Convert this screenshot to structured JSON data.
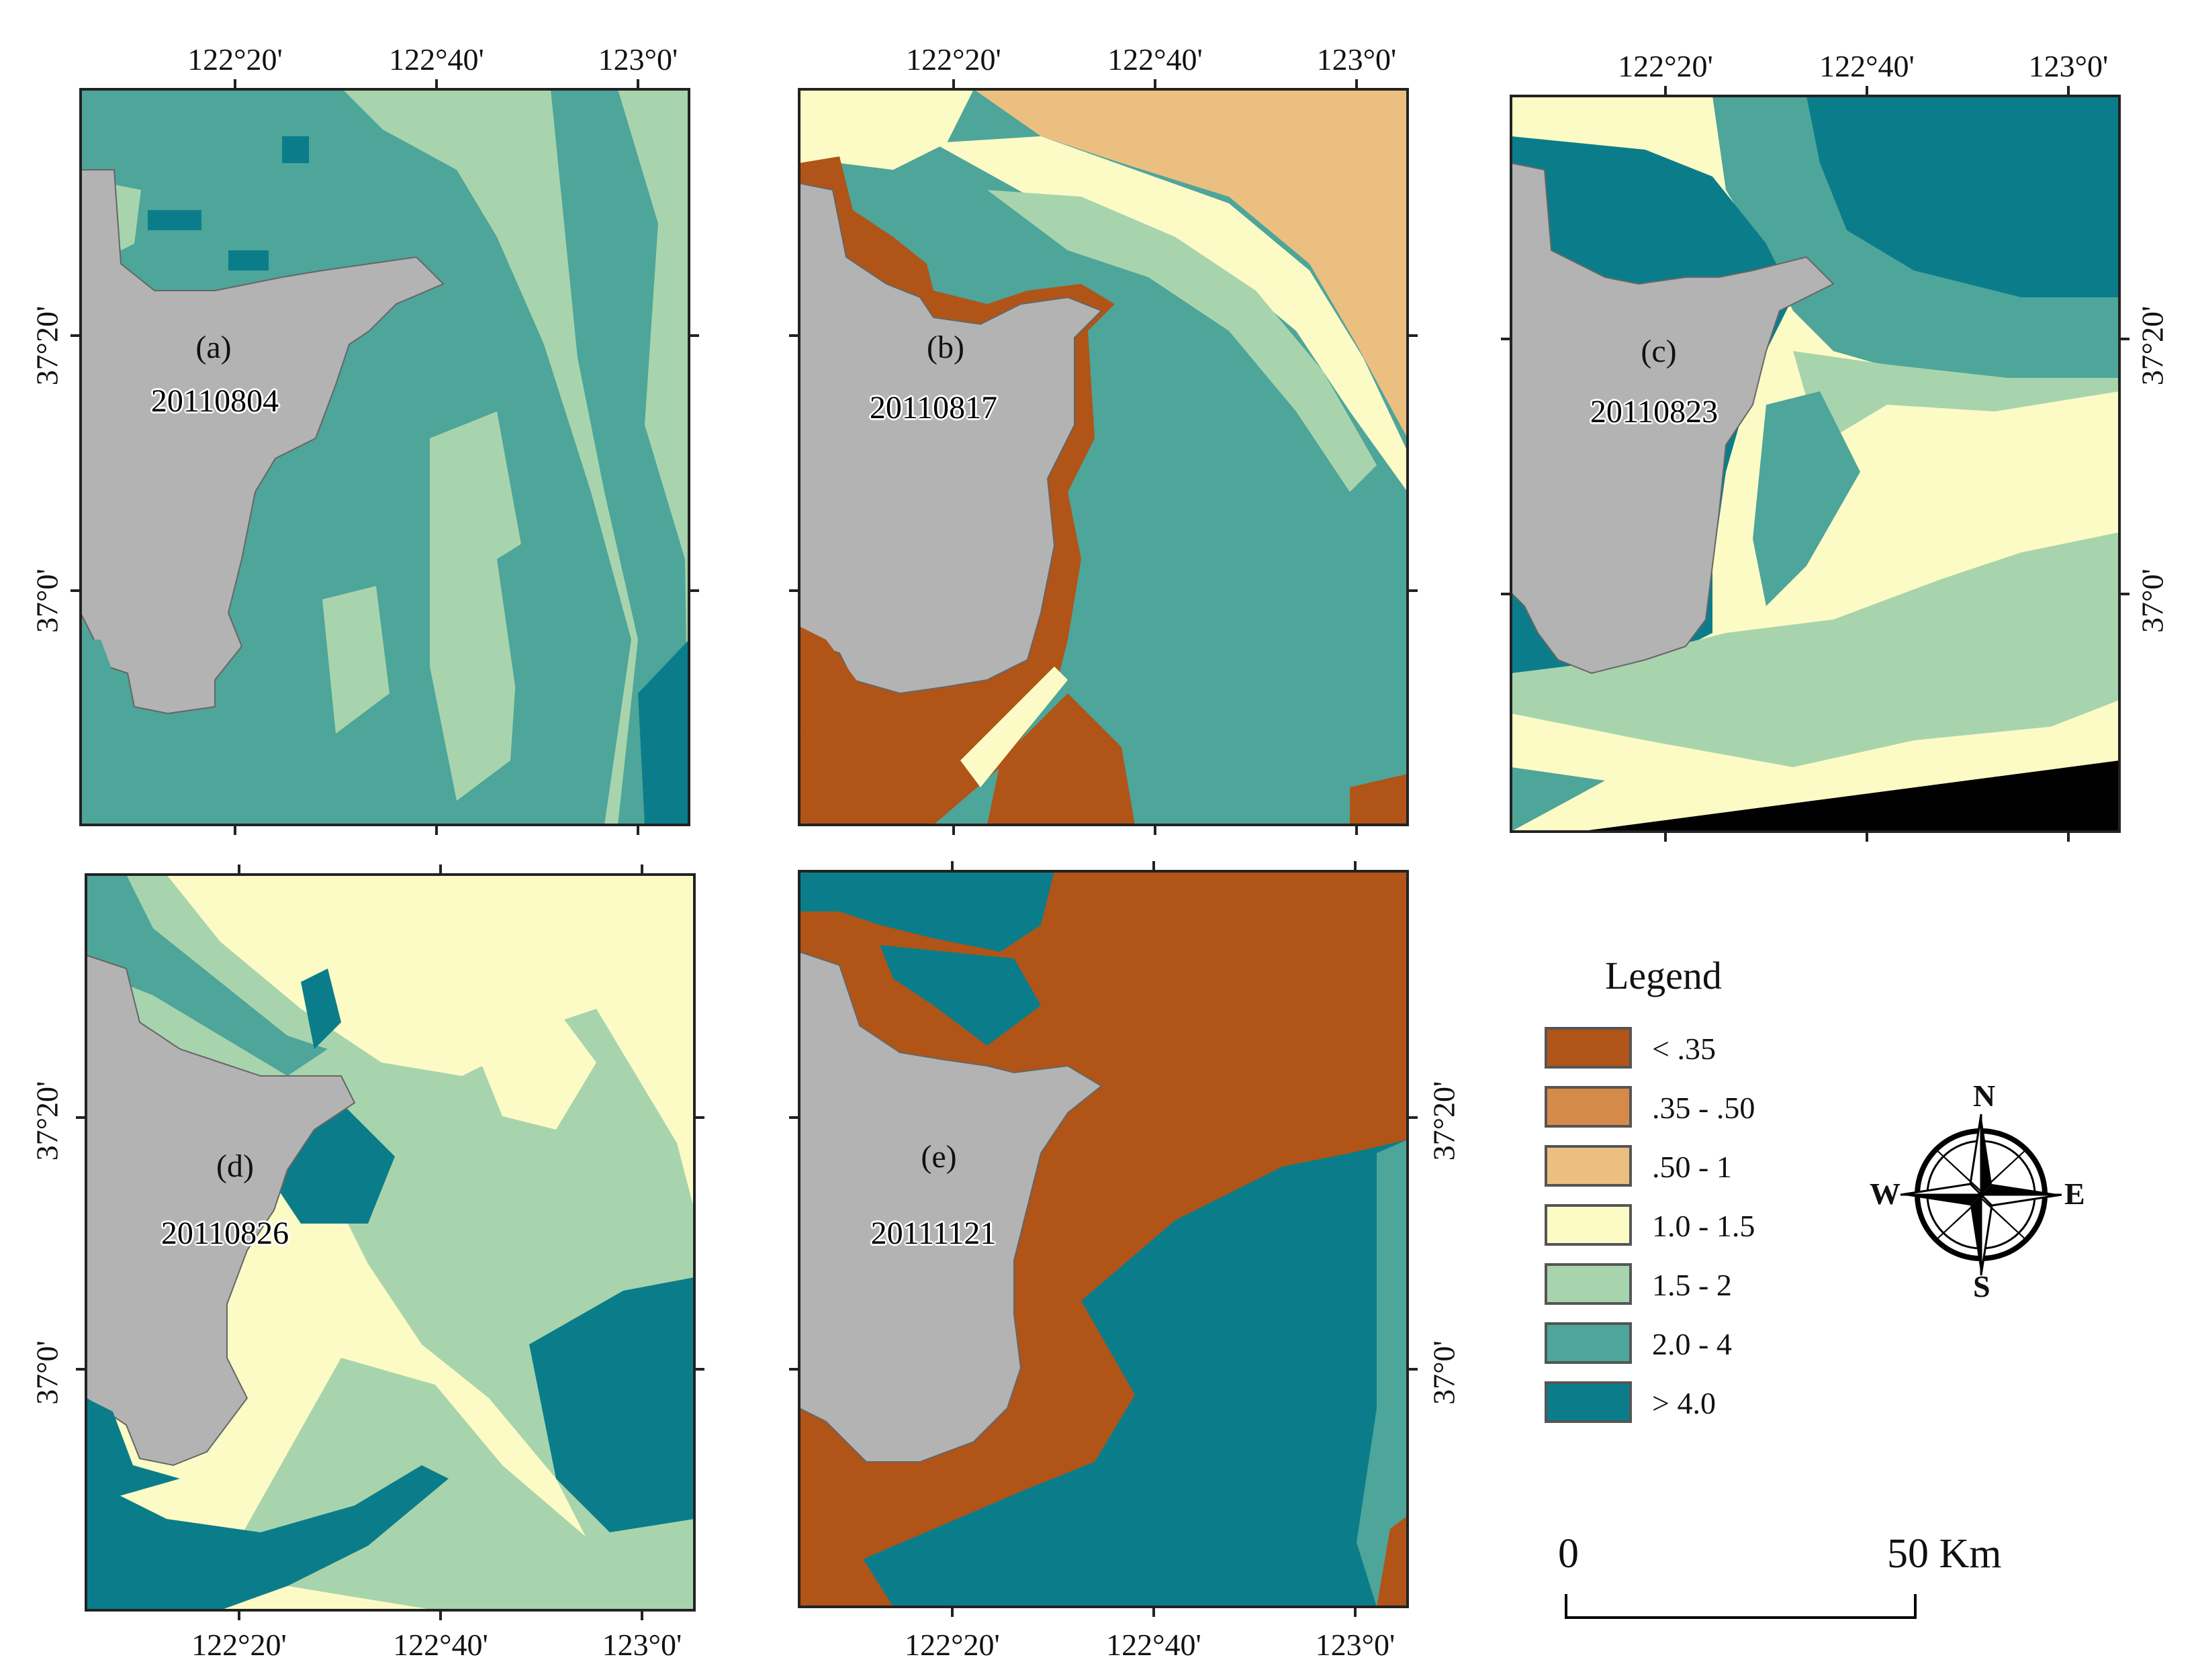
{
  "panels": [
    {
      "id": "a",
      "letter": "(a)",
      "date": "20110804",
      "top_labels": [
        "122°20'",
        "122°40'",
        "123°0'"
      ],
      "bottom_labels": [],
      "left_labels": [
        "37°20'",
        "37°0'"
      ],
      "right_labels": []
    },
    {
      "id": "b",
      "letter": "(b)",
      "date": "20110817",
      "top_labels": [
        "122°20'",
        "122°40'",
        "123°0'"
      ],
      "bottom_labels": [],
      "left_labels": [],
      "right_labels": []
    },
    {
      "id": "c",
      "letter": "(c)",
      "date": "20110823",
      "top_labels": [
        "122°20'",
        "122°40'",
        "123°0'"
      ],
      "bottom_labels": [],
      "left_labels": [],
      "right_labels": [
        "37°20'",
        "37°0'"
      ]
    },
    {
      "id": "d",
      "letter": "(d)",
      "date": "20110826",
      "top_labels": [],
      "bottom_labels": [
        "122°20'",
        "122°40'",
        "123°0'"
      ],
      "left_labels": [
        "37°20'",
        "37°0'"
      ],
      "right_labels": []
    },
    {
      "id": "e",
      "letter": "(e)",
      "date": "20111121",
      "top_labels": [],
      "bottom_labels": [
        "122°20'",
        "122°40'",
        "123°0'"
      ],
      "left_labels": [],
      "right_labels": [
        "37°20'",
        "37°0'"
      ]
    }
  ],
  "legend": {
    "title": "Legend",
    "items": [
      {
        "label": "< .35",
        "color": "#b05417"
      },
      {
        "label": ".35 - .50",
        "color": "#d68a4a"
      },
      {
        "label": ".50 - 1",
        "color": "#ebbf80"
      },
      {
        "label": "1.0 - 1.5",
        "color": "#fcfbc6"
      },
      {
        "label": "1.5 - 2",
        "color": "#a8d4ad"
      },
      {
        "label": "2.0 - 4",
        "color": "#4ea59a"
      },
      {
        "label": "> 4.0",
        "color": "#0b7d8a"
      }
    ]
  },
  "land_color": "#b3b3b3",
  "nodata_color": "#000000",
  "compass": {
    "n": "N",
    "s": "S",
    "e": "E",
    "w": "W"
  },
  "scalebar": {
    "start": "0",
    "end": "50 Km"
  }
}
